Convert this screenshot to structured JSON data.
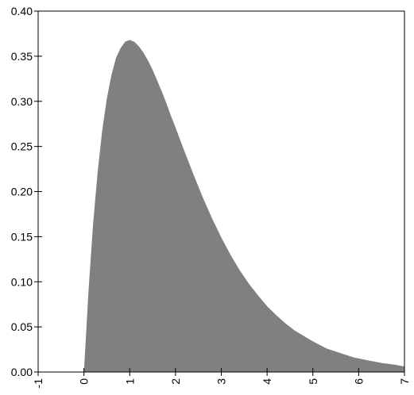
{
  "chart_data": {
    "type": "area",
    "title": "",
    "xlabel": "",
    "ylabel": "",
    "xlim": [
      -1,
      7
    ],
    "ylim": [
      0,
      0.4
    ],
    "grid": false,
    "legend": "none",
    "x_ticks": [
      "-1",
      "0",
      "1",
      "2",
      "3",
      "4",
      "5",
      "6",
      "7"
    ],
    "y_ticks": [
      "0.00",
      "0.05",
      "0.10",
      "0.15",
      "0.20",
      "0.25",
      "0.30",
      "0.35",
      "0.40"
    ],
    "series": [
      {
        "x": [
          0,
          0.1,
          0.2,
          0.3,
          0.4,
          0.5,
          0.6,
          0.7,
          0.8,
          0.9,
          1.0,
          1.1,
          1.2,
          1.3,
          1.4,
          1.5,
          1.6,
          1.7,
          1.8,
          1.9,
          2.0,
          2.2,
          2.4,
          2.6,
          2.8,
          3.0,
          3.2,
          3.4,
          3.6,
          3.8,
          4.0,
          4.2,
          4.4,
          4.6,
          4.8,
          5.0,
          5.3,
          5.6,
          5.9,
          6.2,
          6.5,
          6.8,
          7.0
        ],
        "y": [
          0,
          0.09,
          0.164,
          0.222,
          0.268,
          0.303,
          0.329,
          0.348,
          0.359,
          0.366,
          0.368,
          0.366,
          0.361,
          0.354,
          0.345,
          0.335,
          0.323,
          0.311,
          0.298,
          0.284,
          0.271,
          0.244,
          0.218,
          0.193,
          0.17,
          0.149,
          0.13,
          0.113,
          0.098,
          0.085,
          0.073,
          0.063,
          0.054,
          0.046,
          0.04,
          0.034,
          0.026,
          0.021,
          0.016,
          0.013,
          0.01,
          0.008,
          0.006
        ]
      }
    ],
    "colors": {
      "fill": "#808080",
      "axis": "#000000",
      "background": "#ffffff"
    }
  }
}
